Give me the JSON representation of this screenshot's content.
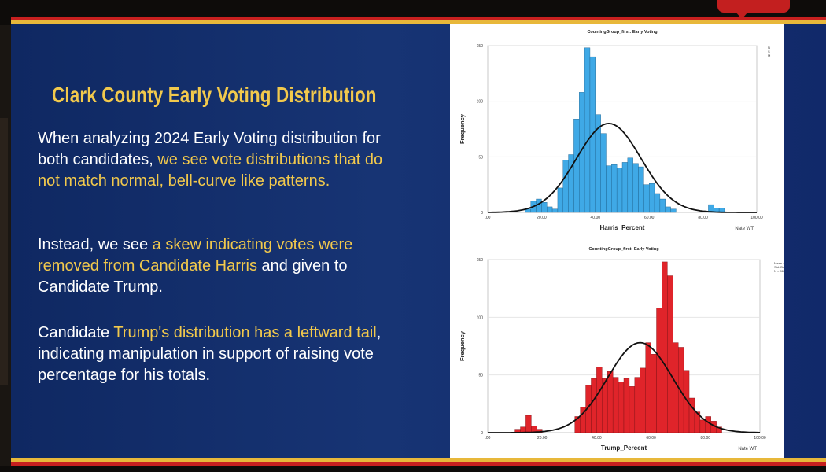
{
  "slide": {
    "title": "Clark County Early Voting Distribution",
    "para1": {
      "a": "When analyzing 2024 Early Voting distribution for both candidates, ",
      "b": "we see vote distributions that do not match normal, bell-curve like patterns."
    },
    "para2": {
      "a": "Instead, we see ",
      "b": "a skew indicating votes were removed from Candidate Harris",
      "c": " and given to Candidate Trump."
    },
    "para3": {
      "a": "Candidate ",
      "b": "Trump's distribution has a leftward tail",
      "c": ", indicating manipulation in support of raising vote percentage for his totals."
    }
  },
  "colors": {
    "slide_bg": "#173474",
    "title": "#f2c94c",
    "highlight": "#f2c94c",
    "harris_bar": "#3fa9e6",
    "trump_bar": "#e0242a",
    "stripe_red": "#c7201f",
    "stripe_gold": "#e8b83a"
  },
  "chart_data": [
    {
      "type": "bar",
      "title": "CountingGroup_first: Early Voting",
      "xlabel": "Harris_Percent",
      "ylabel": "Frequency",
      "footer": "Nate WT",
      "xlim": [
        0,
        100
      ],
      "ylim": [
        0,
        150
      ],
      "xticks": [
        ".00",
        "20.00",
        "40.00",
        "60.00",
        "80.00",
        "100.00"
      ],
      "yticks": [
        "0",
        "50",
        "100",
        "150"
      ],
      "bin_width": 2,
      "bin_start": 14,
      "values": [
        3,
        10,
        12,
        9,
        5,
        3,
        22,
        47,
        52,
        84,
        108,
        148,
        140,
        88,
        71,
        42,
        43,
        40,
        45,
        49,
        44,
        41,
        25,
        26,
        17,
        12,
        5,
        3,
        0,
        0,
        0,
        0,
        0,
        0,
        7,
        4,
        4
      ],
      "normal_curve": {
        "mean": 45,
        "sd": 12,
        "peak": 80
      },
      "stats_box": "N\nS\nM"
    },
    {
      "type": "bar",
      "title": "CountingGroup_first: Early Voting",
      "xlabel": "Trump_Percent",
      "ylabel": "Frequency",
      "footer": "Nate WT",
      "xlim": [
        0,
        100
      ],
      "ylim": [
        0,
        150
      ],
      "xticks": [
        ".00",
        "20.00",
        "40.00",
        "60.00",
        "80.00",
        "100.00"
      ],
      "yticks": [
        "0",
        "50",
        "100",
        "150"
      ],
      "bin_width": 2,
      "bin_start": 10,
      "values": [
        3,
        5,
        15,
        6,
        3,
        0,
        0,
        0,
        0,
        0,
        0,
        14,
        22,
        41,
        47,
        57,
        47,
        53,
        48,
        44,
        47,
        40,
        48,
        56,
        78,
        68,
        108,
        148,
        136,
        78,
        74,
        54,
        30,
        18,
        11,
        14,
        10,
        5
      ],
      "normal_curve": {
        "mean": 56,
        "sd": 12,
        "peak": 78
      },
      "stats_box": "Mean = 56.33\nStd. Dev. = 12.323\nN = 964"
    }
  ]
}
